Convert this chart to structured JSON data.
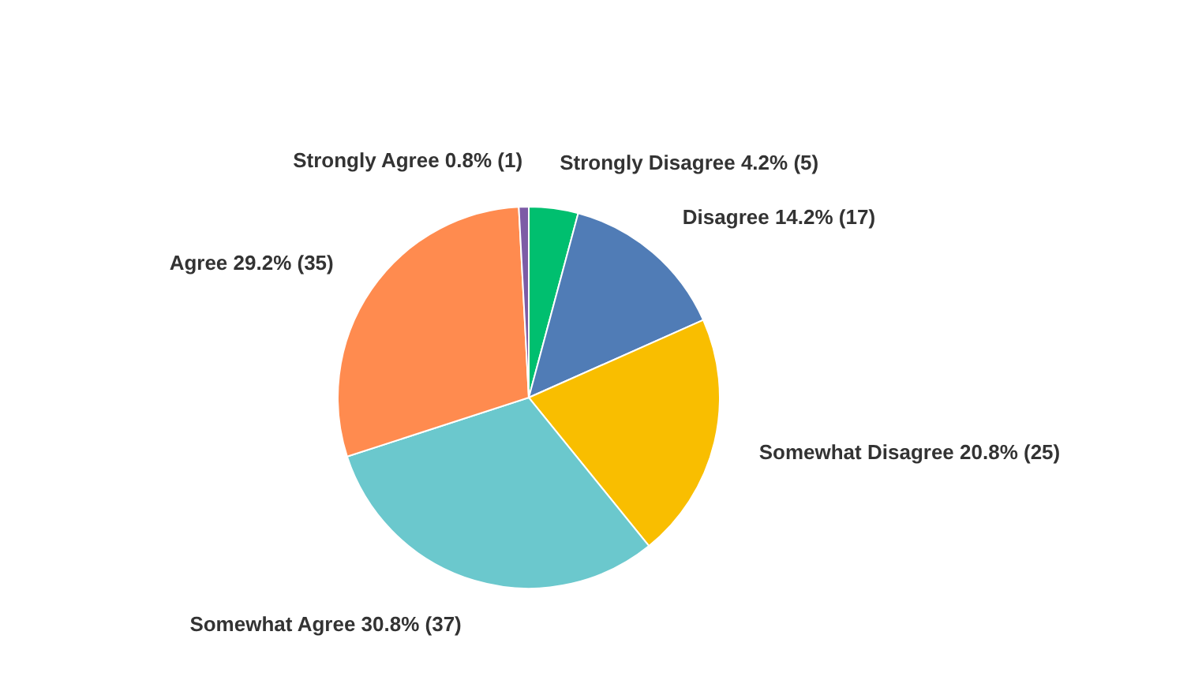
{
  "chart_data": {
    "type": "pie",
    "categories": [
      "Strongly Disagree",
      "Disagree",
      "Somewhat Disagree",
      "Somewhat Agree",
      "Agree",
      "Strongly Agree"
    ],
    "values": [
      5,
      17,
      25,
      37,
      35,
      1
    ],
    "value_labels": [
      "4.2% (5)",
      "14.2% (17)",
      "20.8% (25)",
      "30.8% (37)",
      "29.2% (35)",
      "0.8% (1)"
    ],
    "colors": [
      "#00bf6f",
      "#507cb6",
      "#f9be00",
      "#6bc8cd",
      "#ff8b4f",
      "#7d5ba6"
    ]
  }
}
